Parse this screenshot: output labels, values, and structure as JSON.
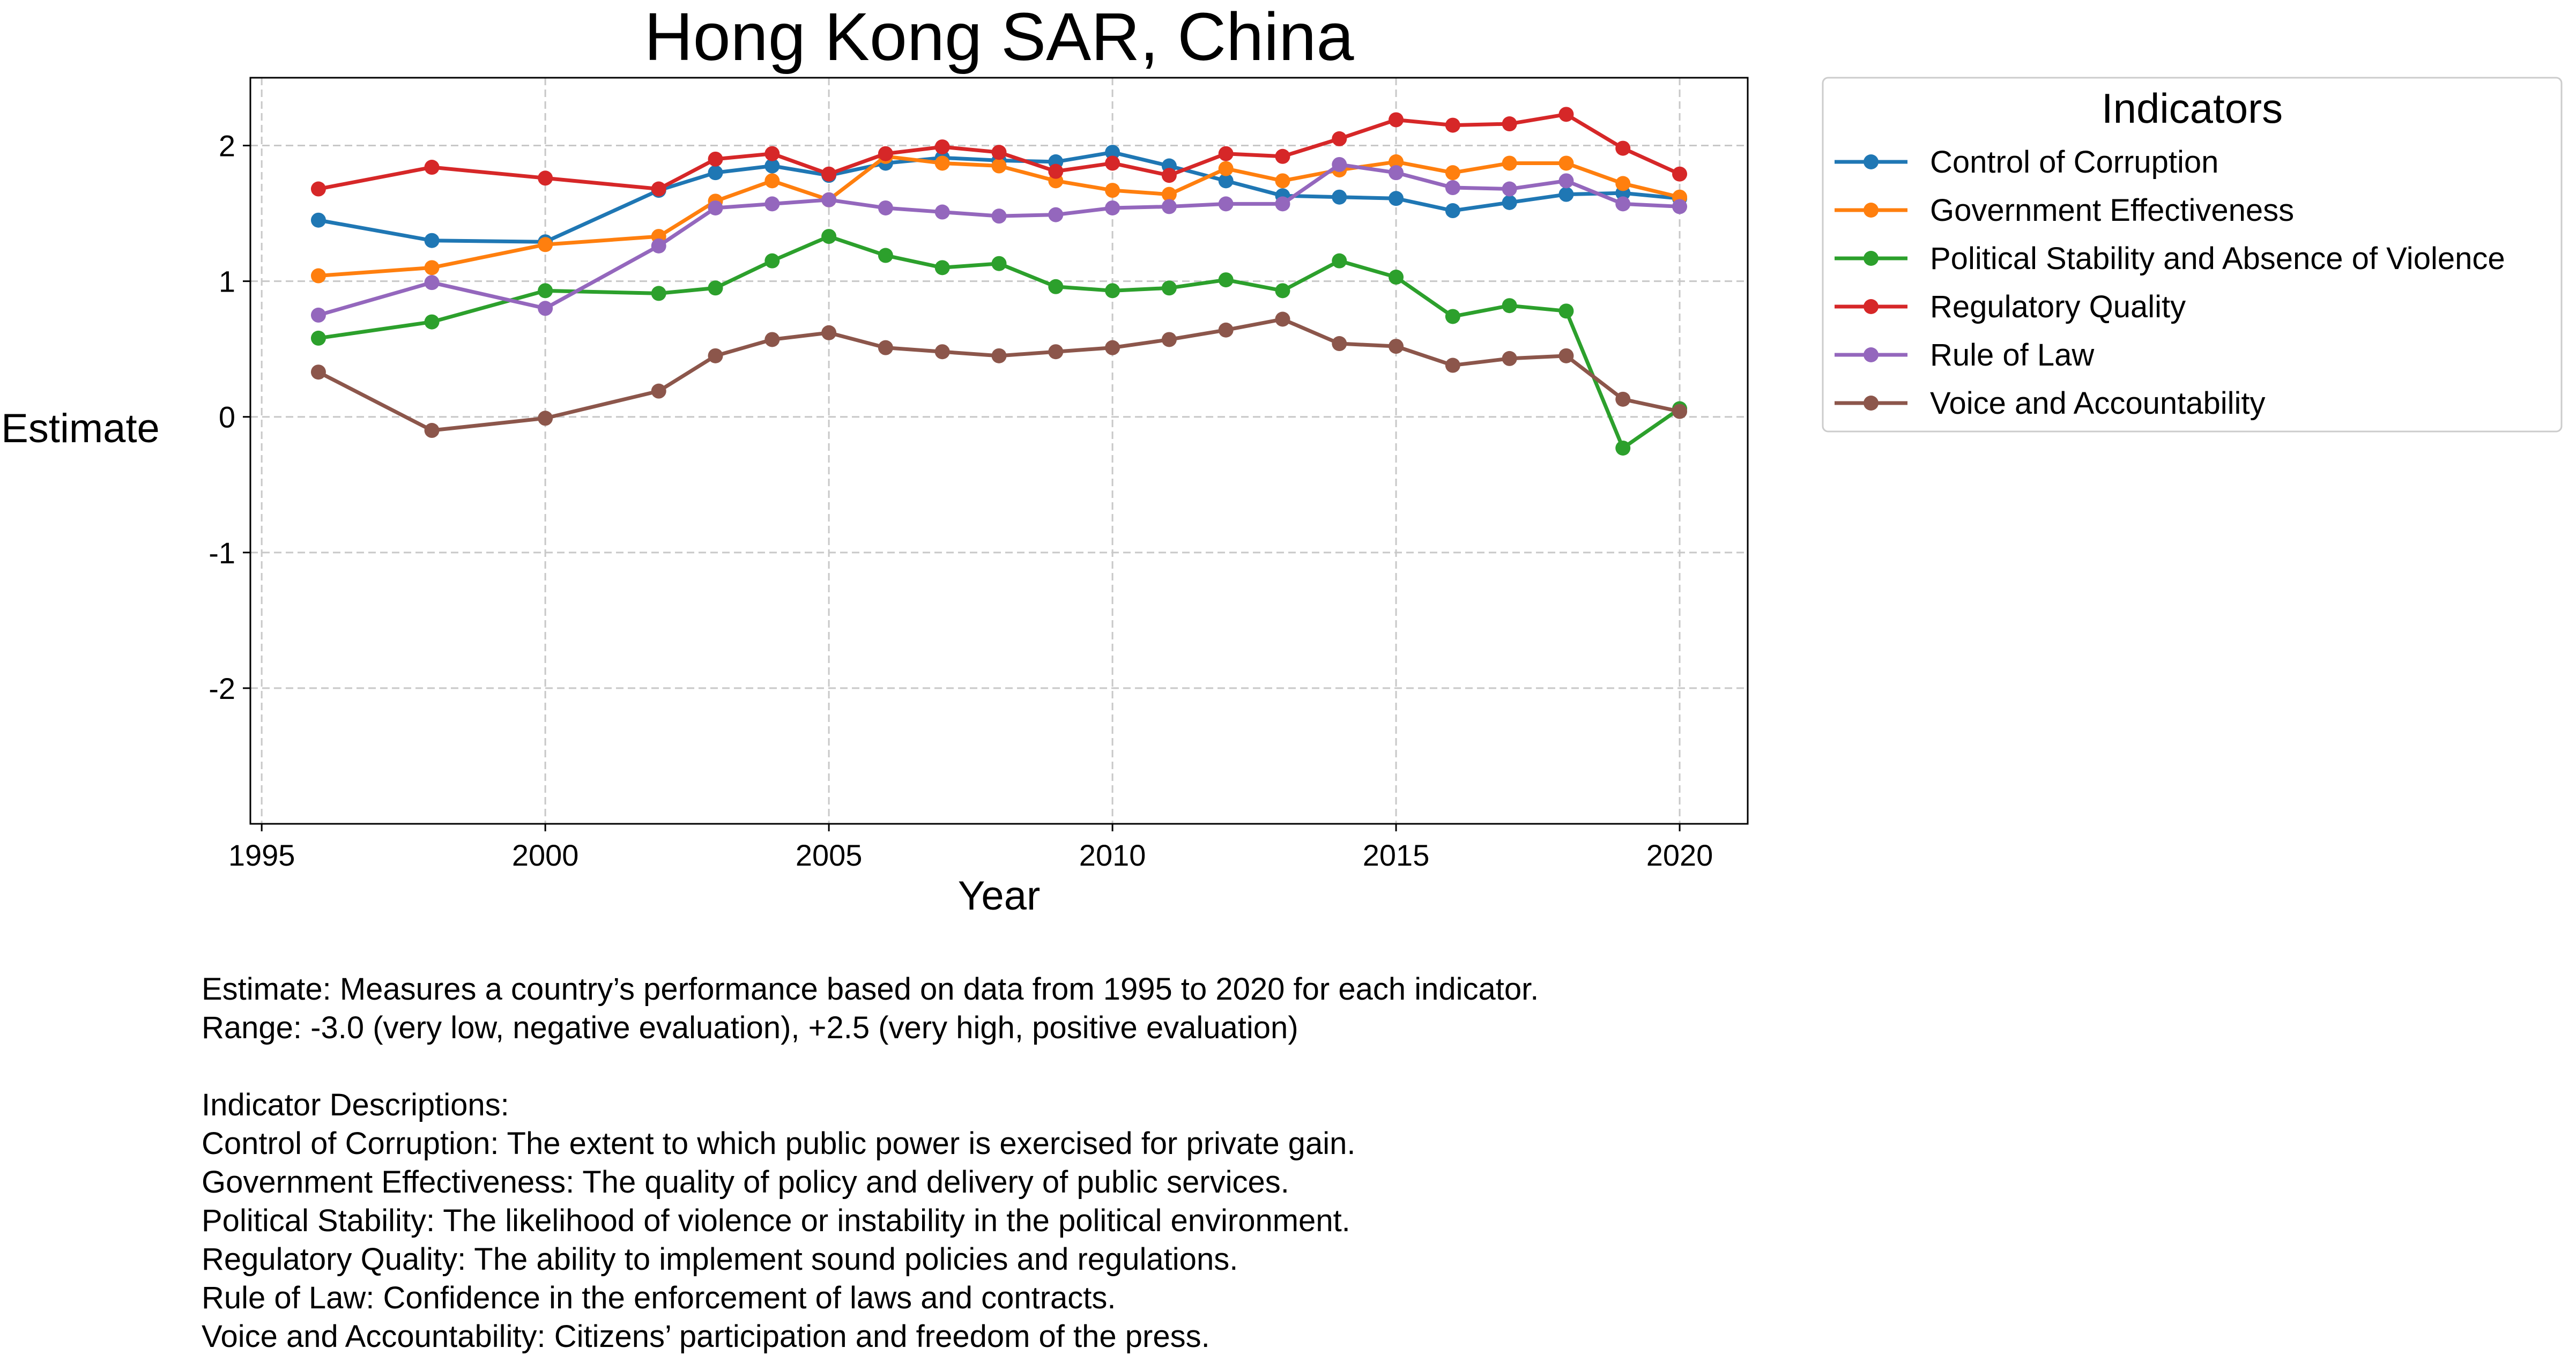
{
  "chart_data": {
    "type": "line",
    "title": "Hong Kong SAR, China",
    "xlabel": "Year",
    "ylabel": "Estimate",
    "xlim": [
      1994.8,
      2021.2
    ],
    "ylim": [
      -3.0,
      2.5
    ],
    "x_ticks": [
      1995,
      2000,
      2005,
      2010,
      2015,
      2020
    ],
    "y_ticks": [
      -2,
      -1,
      0,
      1,
      2
    ],
    "grid": true,
    "legend": {
      "title": "Indicators",
      "position": "outside-right-top"
    },
    "x": [
      1996,
      1998,
      2000,
      2002,
      2003,
      2004,
      2005,
      2006,
      2007,
      2008,
      2009,
      2010,
      2011,
      2012,
      2013,
      2014,
      2015,
      2016,
      2017,
      2018,
      2019,
      2020
    ],
    "series": [
      {
        "name": "Control of Corruption",
        "color": "#1f77b4",
        "values": [
          1.45,
          1.3,
          1.29,
          1.67,
          1.8,
          1.85,
          1.78,
          1.87,
          1.91,
          1.89,
          1.88,
          1.95,
          1.85,
          1.74,
          1.63,
          1.62,
          1.61,
          1.52,
          1.58,
          1.64,
          1.65,
          1.61
        ]
      },
      {
        "name": "Government Effectiveness",
        "color": "#ff7f0e",
        "values": [
          1.04,
          1.1,
          1.27,
          1.33,
          1.59,
          1.74,
          1.6,
          1.92,
          1.87,
          1.85,
          1.74,
          1.67,
          1.64,
          1.83,
          1.74,
          1.82,
          1.88,
          1.8,
          1.87,
          1.87,
          1.72,
          1.62
        ]
      },
      {
        "name": "Political Stability and Absence of Violence",
        "color": "#2ca02c",
        "values": [
          0.58,
          0.7,
          0.93,
          0.91,
          0.95,
          1.15,
          1.33,
          1.19,
          1.1,
          1.13,
          0.96,
          0.93,
          0.95,
          1.01,
          0.93,
          1.15,
          1.03,
          0.74,
          0.82,
          0.78,
          -0.23,
          0.06
        ]
      },
      {
        "name": "Regulatory Quality",
        "color": "#d62728",
        "values": [
          1.68,
          1.84,
          1.76,
          1.68,
          1.9,
          1.94,
          1.79,
          1.94,
          1.99,
          1.95,
          1.81,
          1.87,
          1.78,
          1.94,
          1.92,
          2.05,
          2.19,
          2.15,
          2.16,
          2.23,
          1.98,
          1.79
        ]
      },
      {
        "name": "Rule of Law",
        "color": "#9467bd",
        "values": [
          0.75,
          0.99,
          0.8,
          1.26,
          1.54,
          1.57,
          1.6,
          1.54,
          1.51,
          1.48,
          1.49,
          1.54,
          1.55,
          1.57,
          1.57,
          1.86,
          1.8,
          1.69,
          1.68,
          1.74,
          1.57,
          1.55
        ]
      },
      {
        "name": "Voice and Accountability",
        "color": "#8c564b",
        "values": [
          0.33,
          -0.1,
          -0.01,
          0.19,
          0.45,
          0.57,
          0.62,
          0.51,
          0.48,
          0.45,
          0.48,
          0.51,
          0.57,
          0.64,
          0.72,
          0.54,
          0.52,
          0.38,
          0.43,
          0.45,
          0.13,
          0.04
        ]
      }
    ]
  },
  "notes": {
    "estimate": "Estimate: Measures a country’s performance based on data from 1995 to 2020 for each indicator.",
    "range": "Range: -3.0 (very low, negative evaluation), +2.5 (very high, positive evaluation)",
    "descriptions_heading": "Indicator Descriptions:",
    "descriptions": [
      "Control of Corruption: The extent to which public power is exercised for private gain.",
      "Government Effectiveness: The quality of policy and delivery of public services.",
      "Political Stability: The likelihood of violence or instability in the political environment.",
      "Regulatory Quality: The ability to implement sound policies and regulations.",
      "Rule of Law: Confidence in the enforcement of laws and contracts.",
      "Voice and Accountability: Citizens’ participation and freedom of the press."
    ]
  }
}
